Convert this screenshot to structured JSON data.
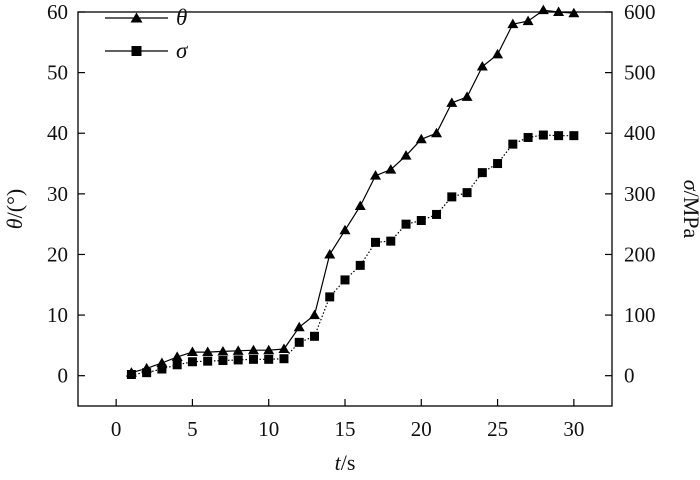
{
  "chart_data": {
    "type": "line",
    "x_axis": {
      "label_var": "t",
      "label_unit": "/s",
      "ticks": [
        0,
        5,
        10,
        15,
        20,
        25,
        30
      ],
      "range": [
        -2.5,
        32.5
      ]
    },
    "y_axis_left": {
      "label_var": "θ",
      "label_unit": "/(°)",
      "ticks": [
        0,
        10,
        20,
        30,
        40,
        50,
        60
      ],
      "range": [
        -5,
        60
      ]
    },
    "y_axis_right": {
      "label_var": "σ",
      "label_unit": "/MPa",
      "ticks": [
        0,
        100,
        200,
        300,
        400,
        500,
        600
      ],
      "range": [
        -50,
        600
      ]
    },
    "legend_position": "top-left",
    "grid": false,
    "series": [
      {
        "name": "θ",
        "axis": "left",
        "marker": "triangle",
        "line_style": "solid",
        "x": [
          1,
          2,
          3,
          4,
          5,
          6,
          7,
          8,
          9,
          10,
          11,
          12,
          13,
          14,
          15,
          16,
          17,
          18,
          19,
          20,
          21,
          22,
          23,
          24,
          25,
          26,
          27,
          28,
          29,
          30
        ],
        "y": [
          0.5,
          1.2,
          2.1,
          3.1,
          3.9,
          3.9,
          4.0,
          4.1,
          4.2,
          4.2,
          4.4,
          8.0,
          10.0,
          20.0,
          24.0,
          28.0,
          33.0,
          34.0,
          36.3,
          39.0,
          40.0,
          45.0,
          46.0,
          51.0,
          53.0,
          58.0,
          58.5,
          60.3,
          60.0,
          59.8
        ]
      },
      {
        "name": "σ",
        "axis": "right",
        "marker": "square",
        "line_style": "dotted",
        "x": [
          1,
          2,
          3,
          4,
          5,
          6,
          7,
          8,
          9,
          10,
          11,
          12,
          13,
          14,
          15,
          16,
          17,
          18,
          19,
          20,
          21,
          22,
          23,
          24,
          25,
          26,
          27,
          28,
          29,
          30
        ],
        "y": [
          2,
          5,
          11,
          18,
          23,
          24,
          25,
          26,
          27,
          27,
          28,
          55,
          65,
          130,
          158,
          182,
          220,
          222,
          250,
          256,
          266,
          295,
          302,
          335,
          350,
          382,
          393,
          397,
          396,
          396
        ]
      }
    ]
  }
}
